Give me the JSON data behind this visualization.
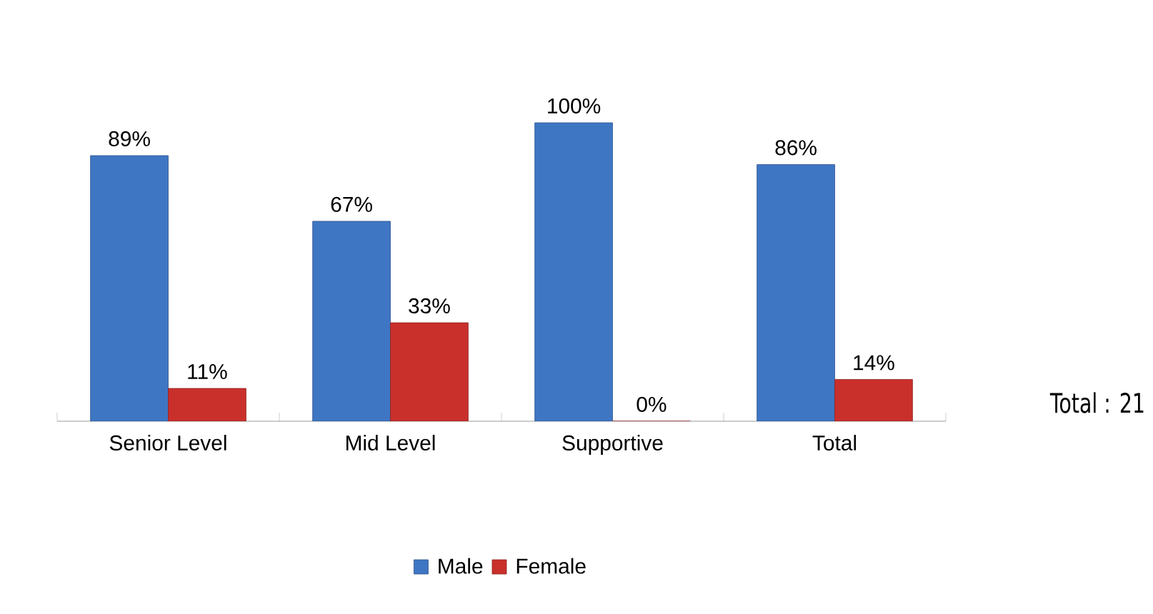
{
  "chart_data": {
    "type": "bar",
    "categories": [
      "Senior Level",
      "Mid Level",
      "Supportive",
      "Total"
    ],
    "series": [
      {
        "name": "Male",
        "color": "#3f76c4",
        "values": [
          89,
          67,
          100,
          86
        ],
        "value_labels": [
          "89%",
          "67%",
          "100%",
          "86%"
        ]
      },
      {
        "name": "Female",
        "color": "#c9302c",
        "values": [
          11,
          33,
          0,
          14
        ],
        "value_labels": [
          "11%",
          "33%",
          "0%",
          "14%"
        ]
      }
    ],
    "annotations": [
      "Total : 21"
    ],
    "legend": "bottom"
  }
}
